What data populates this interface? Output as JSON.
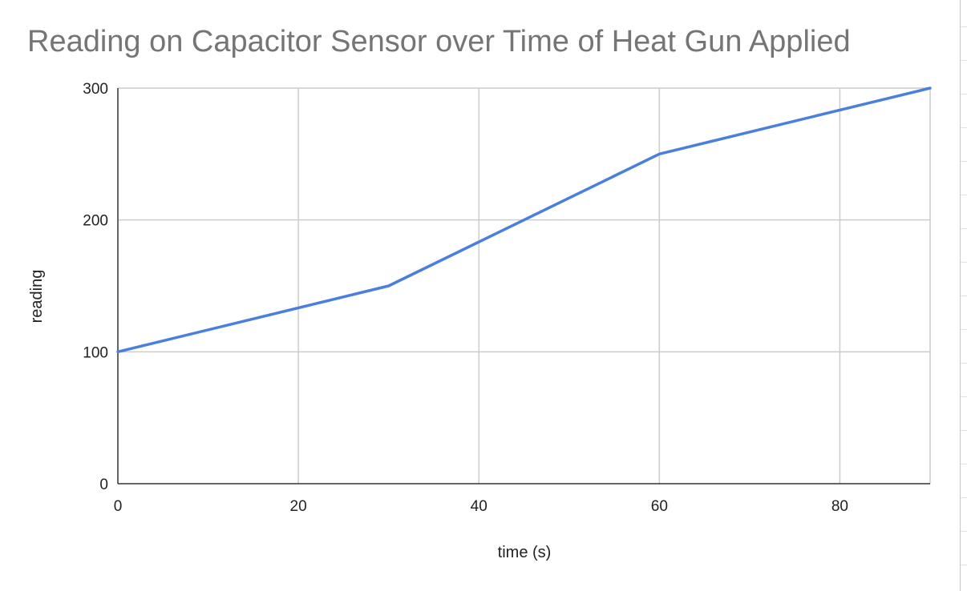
{
  "chart_data": {
    "type": "line",
    "title": "Reading on Capacitor Sensor over Time of Heat Gun Applied",
    "xlabel": "time (s)",
    "ylabel": "reading",
    "xlim": [
      0,
      90
    ],
    "ylim": [
      0,
      300
    ],
    "x_ticks": [
      0,
      20,
      40,
      60,
      80
    ],
    "y_ticks": [
      0,
      100,
      200,
      300
    ],
    "grid": true,
    "legend": "none",
    "series": [
      {
        "color": "#4a7fdd",
        "x": [
          0,
          30,
          60,
          90
        ],
        "y": [
          100,
          150,
          250,
          300
        ]
      }
    ]
  }
}
